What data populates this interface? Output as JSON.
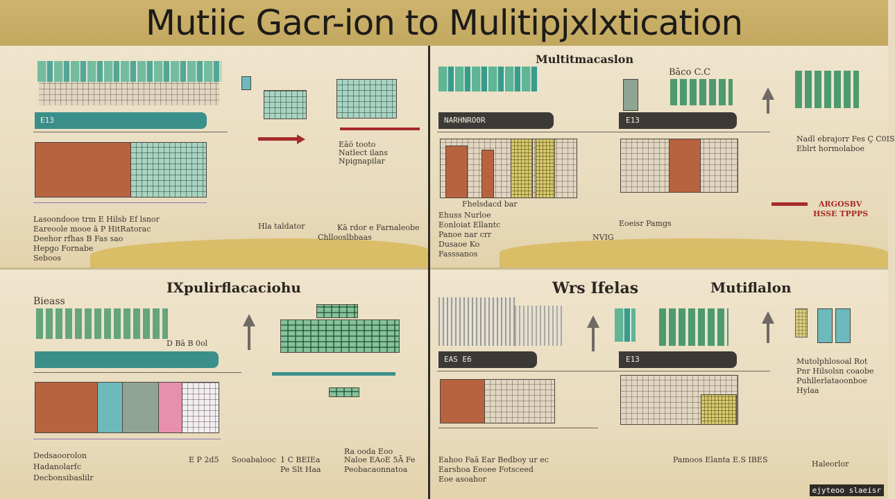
{
  "banner": {
    "title": "Mutiic Gacr-ion to Mulitipjxlxtication"
  },
  "colors": {
    "teal": "#3b8f8a",
    "rust": "#b8633f",
    "red": "#a92a25",
    "banner": "#c9ae66"
  },
  "panel_tl": {
    "bar_label": "E13",
    "note1": "Eāö tooto",
    "note2": "Natlect ilans",
    "note3": "Npignapilar",
    "caption1": "Hla taldator",
    "caption2": "Kā rdor e Farnaleobe",
    "caption3": "Chllooslbbaas",
    "row1": "Lasoondooe trm  E Hilsb  Ef lsnor",
    "row2": "Eareoole mooe  ā P  HitRatorac",
    "row3": "Deehor rfhas  B  Fas  sao",
    "row4": "Hepgo Fornabe",
    "row5": "Seboos"
  },
  "panel_tr": {
    "title": "Multitmacaslon",
    "top_label": "Bāco   C.C",
    "bar1_label": "NARHNRO0R",
    "bar2_label": "E13",
    "caption1": "Fhelsdacd bar",
    "row1": "Ehuss Nurloe",
    "row2": "Eonloiat Ellantc",
    "row3": "Panoe nar crr",
    "row4": "Dusaoe Ko",
    "row5": "Fasssanos",
    "right1": "Nadl ebrajorr Fes  Ç  C0IS",
    "right2": "Eblrt hormolaboe",
    "red1": "ARGOSBV",
    "red2": "HSSE TPPPS",
    "caption2": "Eoeisr Pamgs",
    "note": "NVIG"
  },
  "panel_bl": {
    "title": "IXpulirflacaciohu",
    "top_label": "Bieass",
    "mid_label": "D  Bā B  0ol",
    "row1": "Dedsaoorolon",
    "row2": "Hadanolarfc",
    "row3": "Decbonsibaslilr",
    "val1": "E  P  2d5",
    "val2": "Sooabalooc",
    "val3": "1  C BEIEa",
    "val4": "Pe  Slt Haa",
    "mid1": "Ra ooda Eoo",
    "mid2": "Naloe EAoE 5Ā  Fe",
    "mid3": "Peobacaonnatoa"
  },
  "panel_br": {
    "title_left": "Wrs Ifelas",
    "title_right": "Mutiflalon",
    "bar1_label": "EAS  E6",
    "bar2_label": "E13",
    "right1": "Mutolphlosoal  Rot",
    "right2": "Pnr Hilsolsn coaobe",
    "right3": "Puhllerlataoonboe",
    "right4": "Hylaa",
    "foot1": "Eahoo Faā Ear Bedboy ur ec",
    "foot2": "Earshoa Eeoee  Fotsceed",
    "foot3": "Eoe asoahor",
    "foot4": "Pamoos Elanta  E.S IBES",
    "foot5": "Haleorlor",
    "logo": "ejyteoo slaeisr"
  }
}
